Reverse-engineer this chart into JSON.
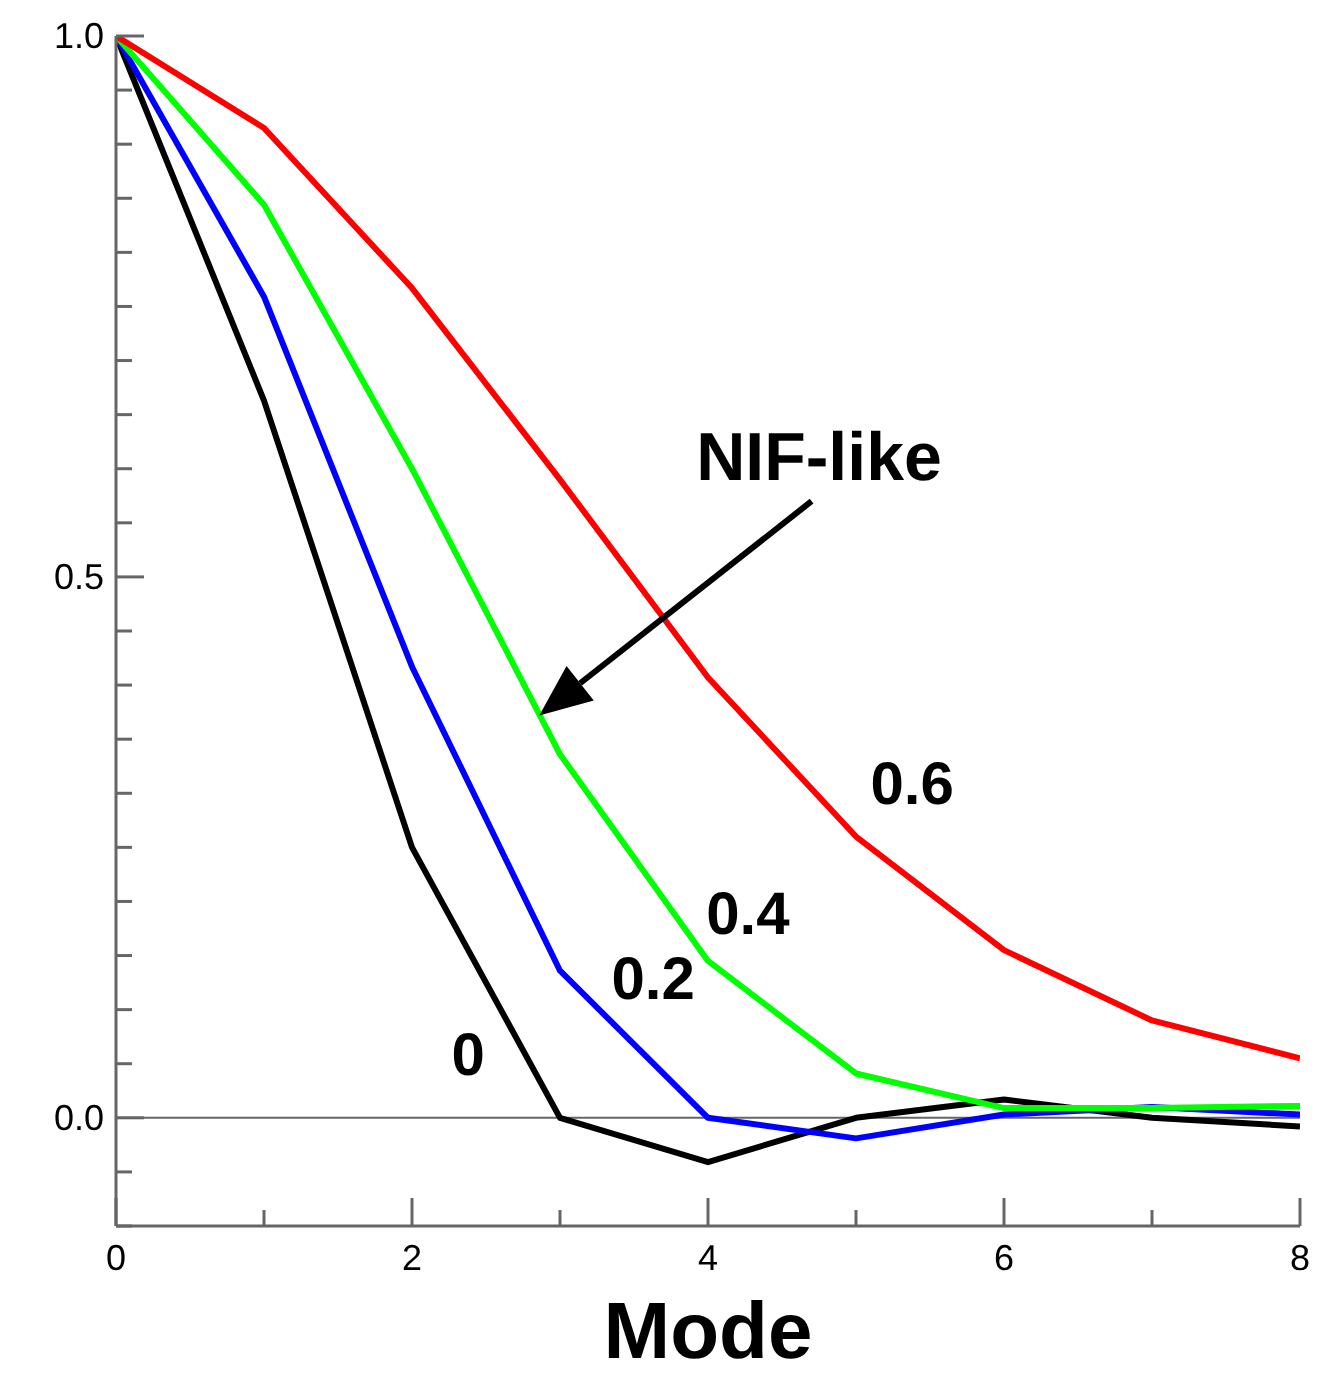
{
  "chart_data": {
    "type": "line",
    "xlabel": "Mode",
    "x": [
      0,
      1,
      2,
      3,
      4,
      5,
      6,
      7,
      8
    ],
    "series": [
      {
        "name": "0",
        "color": "#000000",
        "values": [
          1.0,
          0.663,
          0.25,
          0.0,
          -0.041,
          0.0,
          0.017,
          0.0,
          -0.008
        ]
      },
      {
        "name": "0.2",
        "color": "#0000ff",
        "values": [
          1.0,
          0.759,
          0.417,
          0.136,
          0.0,
          -0.019,
          0.003,
          0.01,
          0.003
        ]
      },
      {
        "name": "0.4",
        "color": "#00ff00",
        "values": [
          1.0,
          0.844,
          0.6,
          0.336,
          0.145,
          0.041,
          0.009,
          0.009,
          0.011
        ]
      },
      {
        "name": "0.6",
        "color": "#ff0000",
        "values": [
          1.0,
          0.915,
          0.767,
          0.59,
          0.407,
          0.26,
          0.155,
          0.09,
          0.055
        ]
      }
    ],
    "xlim": [
      0,
      8
    ],
    "xticks": [
      0,
      {
        "value": 1,
        "label": null
      },
      2,
      {
        "value": 3,
        "label": null
      },
      4,
      {
        "value": 5,
        "label": null
      },
      6,
      {
        "value": 7,
        "label": null
      },
      8
    ],
    "ylim": [
      -0.1,
      1.0
    ],
    "yticks": [
      {
        "value": -0.1,
        "label": null
      },
      {
        "value": -0.05,
        "label": null
      },
      {
        "value": 0,
        "label": "0.0"
      },
      {
        "value": 0.05,
        "label": null
      },
      {
        "value": 0.1,
        "label": null
      },
      {
        "value": 0.15,
        "label": null
      },
      {
        "value": 0.2,
        "label": null
      },
      {
        "value": 0.25,
        "label": null
      },
      {
        "value": 0.3,
        "label": null
      },
      {
        "value": 0.35,
        "label": null
      },
      {
        "value": 0.4,
        "label": null
      },
      {
        "value": 0.45,
        "label": null
      },
      {
        "value": 0.5,
        "label": "0.5"
      },
      {
        "value": 0.55,
        "label": null
      },
      {
        "value": 0.6,
        "label": null
      },
      {
        "value": 0.65,
        "label": null
      },
      {
        "value": 0.7,
        "label": null
      },
      {
        "value": 0.75,
        "label": null
      },
      {
        "value": 0.8,
        "label": null
      },
      {
        "value": 0.85,
        "label": null
      },
      {
        "value": 0.9,
        "label": null
      },
      {
        "value": 0.95,
        "label": null
      },
      {
        "value": 1.0,
        "label": "1.0"
      }
    ],
    "ref_lines": [
      {
        "axis": "y",
        "value": 0,
        "color": "#666666"
      }
    ],
    "annotations": [
      "NIF-like"
    ],
    "grid": false,
    "legend": false,
    "marker": "none",
    "line_style": "solid"
  }
}
